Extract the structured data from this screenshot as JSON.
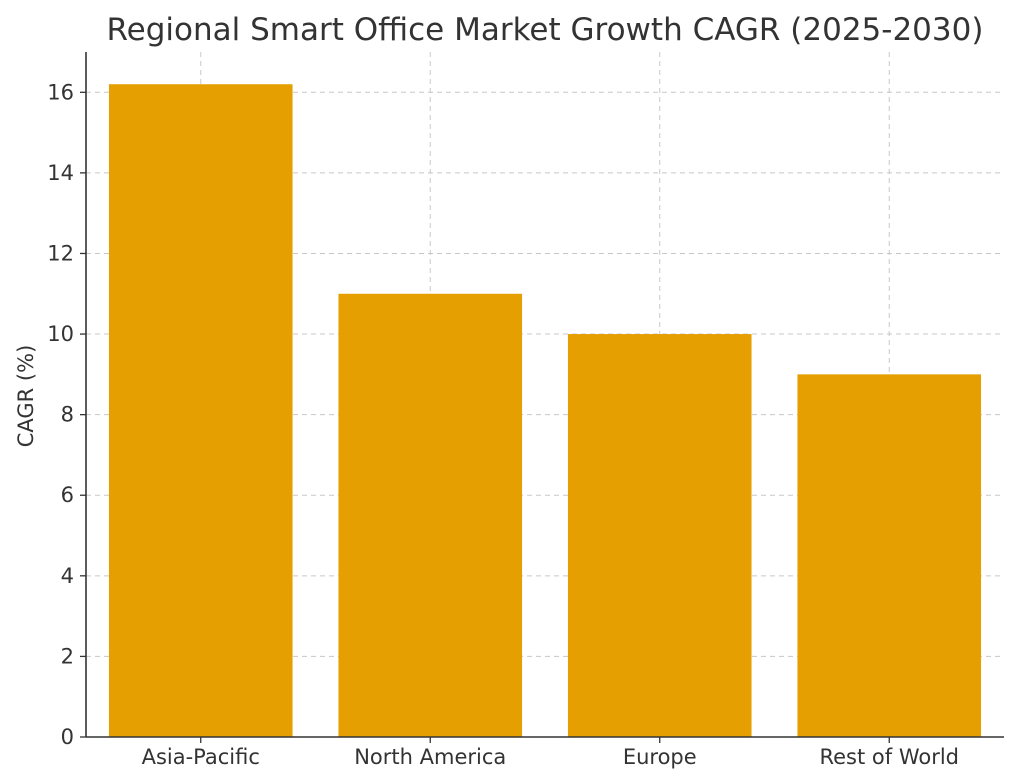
{
  "chart_data": {
    "type": "bar",
    "title": "Regional Smart Office Market Growth CAGR (2025-2030)",
    "xlabel": "",
    "ylabel": "CAGR (%)",
    "categories": [
      "Asia-Pacific",
      "North America",
      "Europe",
      "Rest of World"
    ],
    "values": [
      16.2,
      11.0,
      10.0,
      9.0
    ],
    "ylim": [
      0,
      17
    ],
    "yticks": [
      0,
      2,
      4,
      6,
      8,
      10,
      12,
      14,
      16
    ],
    "grid": true,
    "bar_color": "#E69F00",
    "legend": "none"
  }
}
